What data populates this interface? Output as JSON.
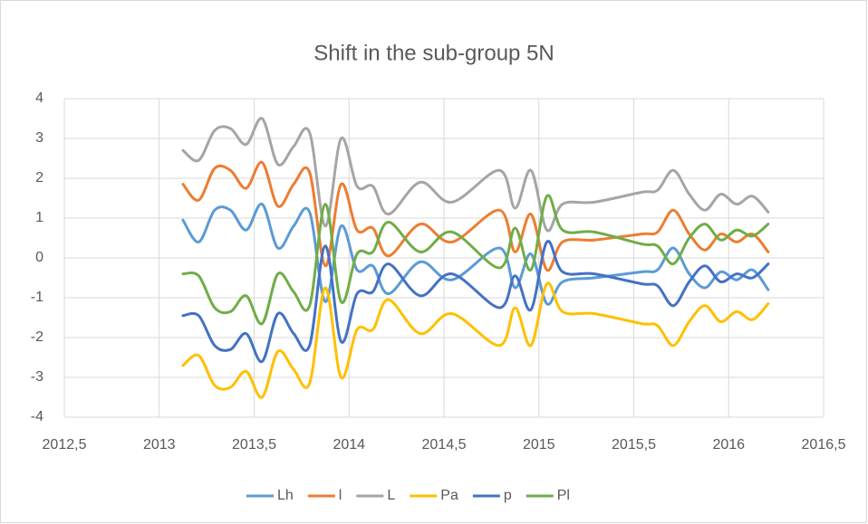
{
  "chart_data": {
    "type": "line",
    "title": "Shift in the sub-group 5N",
    "x": [
      2013.125,
      2013.208,
      2013.292,
      2013.375,
      2013.458,
      2013.542,
      2013.625,
      2013.708,
      2013.792,
      2013.875,
      2013.958,
      2014.042,
      2014.125,
      2014.208,
      2014.375,
      2014.542,
      2014.792,
      2014.875,
      2014.958,
      2015.042,
      2015.125,
      2015.292,
      2015.542,
      2015.625,
      2015.708,
      2015.792,
      2015.875,
      2015.958,
      2016.042,
      2016.125,
      2016.208
    ],
    "series": [
      {
        "name": "Lh",
        "color": "#5b9bd5",
        "values": [
          0.95,
          0.4,
          1.2,
          1.2,
          0.7,
          1.35,
          0.25,
          0.8,
          1.15,
          -1.1,
          0.8,
          -0.3,
          -0.2,
          -0.9,
          -0.1,
          -0.55,
          0.25,
          -0.75,
          0.1,
          -1.15,
          -0.6,
          -0.5,
          -0.35,
          -0.3,
          0.25,
          -0.4,
          -0.75,
          -0.35,
          -0.55,
          -0.3,
          -0.8
        ]
      },
      {
        "name": "l",
        "color": "#ed7d31",
        "values": [
          1.85,
          1.45,
          2.25,
          2.2,
          1.75,
          2.4,
          1.3,
          1.85,
          2.15,
          -0.2,
          1.85,
          0.7,
          0.75,
          0.05,
          0.85,
          0.4,
          1.2,
          0.15,
          1.1,
          -0.3,
          0.4,
          0.45,
          0.6,
          0.65,
          1.2,
          0.6,
          0.2,
          0.6,
          0.4,
          0.6,
          0.15
        ]
      },
      {
        "name": "L",
        "color": "#a5a5a5",
        "values": [
          2.7,
          2.45,
          3.2,
          3.25,
          2.85,
          3.5,
          2.35,
          2.8,
          3.15,
          0.8,
          3.0,
          1.8,
          1.8,
          1.1,
          1.9,
          1.4,
          2.2,
          1.25,
          2.2,
          0.7,
          1.35,
          1.4,
          1.65,
          1.7,
          2.2,
          1.6,
          1.2,
          1.6,
          1.35,
          1.55,
          1.15
        ]
      },
      {
        "name": "Pa",
        "color": "#ffc000",
        "values": [
          -2.7,
          -2.45,
          -3.2,
          -3.25,
          -2.85,
          -3.5,
          -2.35,
          -2.8,
          -3.15,
          -0.75,
          -3.0,
          -1.8,
          -1.8,
          -1.05,
          -1.9,
          -1.4,
          -2.2,
          -1.25,
          -2.2,
          -0.65,
          -1.35,
          -1.4,
          -1.65,
          -1.7,
          -2.2,
          -1.6,
          -1.2,
          -1.6,
          -1.35,
          -1.55,
          -1.15
        ]
      },
      {
        "name": "p",
        "color": "#4472c4",
        "values": [
          -1.45,
          -1.45,
          -2.2,
          -2.3,
          -1.9,
          -2.6,
          -1.4,
          -1.9,
          -2.2,
          0.3,
          -2.1,
          -0.9,
          -0.85,
          -0.15,
          -0.95,
          -0.4,
          -1.25,
          -0.45,
          -1.3,
          0.4,
          -0.35,
          -0.4,
          -0.65,
          -0.7,
          -1.2,
          -0.6,
          -0.2,
          -0.6,
          -0.4,
          -0.5,
          -0.15
        ]
      },
      {
        "name": "Pl",
        "color": "#70ad47",
        "values": [
          -0.4,
          -0.45,
          -1.25,
          -1.35,
          -0.95,
          -1.65,
          -0.4,
          -0.85,
          -1.2,
          1.35,
          -1.1,
          0.1,
          0.15,
          0.9,
          0.15,
          0.65,
          -0.25,
          0.75,
          -0.3,
          1.55,
          0.7,
          0.65,
          0.35,
          0.3,
          -0.15,
          0.5,
          0.85,
          0.45,
          0.7,
          0.55,
          0.85
        ]
      }
    ],
    "xlim": [
      2012.5,
      2016.5
    ],
    "xticks": [
      {
        "value": 2012.5,
        "label": "2012,5"
      },
      2013,
      {
        "value": 2013.5,
        "label": "2013,5"
      },
      2014,
      {
        "value": 2014.5,
        "label": "2014,5"
      },
      2015,
      {
        "value": 2015.5,
        "label": "2015,5"
      },
      2016,
      {
        "value": 2016.5,
        "label": "2016,5"
      }
    ],
    "ylim": [
      -4,
      4
    ],
    "yticks": [
      -4,
      -3,
      -2,
      -1,
      0,
      1,
      2,
      3,
      4
    ],
    "grid": true,
    "legend": "bottom"
  }
}
